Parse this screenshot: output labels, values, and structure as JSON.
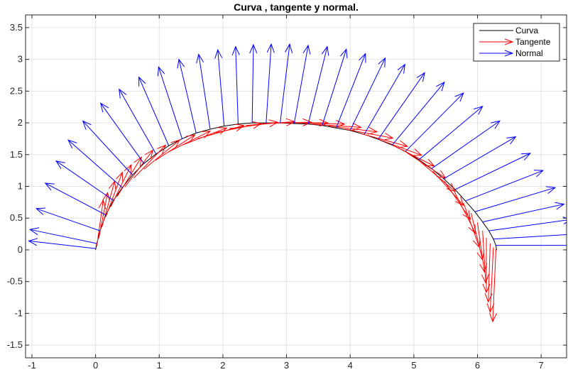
{
  "chart_data": {
    "type": "line",
    "title": "Curva , tangente y normal.",
    "xlabel": "",
    "ylabel": "",
    "xlim": [
      -1.1,
      7.4
    ],
    "ylim": [
      -1.7,
      3.7
    ],
    "xticks": [
      -1,
      0,
      1,
      2,
      3,
      4,
      5,
      6,
      7
    ],
    "yticks": [
      -1.5,
      -1,
      -0.5,
      0,
      0.5,
      1,
      1.5,
      2,
      2.5,
      3,
      3.5
    ],
    "grid": true,
    "legend_position": "top-right",
    "legend": [
      "Curva",
      "Tangente",
      "Normal"
    ],
    "colors": {
      "curva": "#000000",
      "tangente": "#ff0000",
      "normal": "#0000ff"
    },
    "curve": {
      "name": "Curva",
      "x": [
        0,
        0.02,
        0.07,
        0.16,
        0.28,
        0.42,
        0.58,
        0.76,
        0.95,
        1.15,
        1.36,
        1.58,
        1.8,
        2.02,
        2.24,
        2.46,
        2.68,
        2.9,
        3.12,
        3.34,
        3.56,
        3.78,
        4.0,
        4.22,
        4.44,
        4.66,
        4.87,
        5.08,
        5.28,
        5.47,
        5.65,
        5.81,
        5.96,
        6.08,
        6.18,
        6.25,
        6.29,
        6.3
      ],
      "y": [
        0,
        0.1,
        0.3,
        0.55,
        0.78,
        0.98,
        1.18,
        1.36,
        1.51,
        1.64,
        1.75,
        1.84,
        1.9,
        1.95,
        1.98,
        2.0,
        2.0,
        2.0,
        1.99,
        1.98,
        1.96,
        1.92,
        1.88,
        1.82,
        1.74,
        1.65,
        1.55,
        1.42,
        1.28,
        1.12,
        0.95,
        0.77,
        0.6,
        0.44,
        0.3,
        0.17,
        0.07,
        0
      ]
    },
    "tangente": {
      "name": "Tangente",
      "arrows": [
        {
          "x": 0.02,
          "y": 0.06,
          "u": 0.1,
          "v": 0.72
        },
        {
          "x": 0.05,
          "y": 0.18,
          "u": 0.14,
          "v": 0.72
        },
        {
          "x": 0.1,
          "y": 0.36,
          "u": 0.2,
          "v": 0.72
        },
        {
          "x": 0.16,
          "y": 0.52,
          "u": 0.26,
          "v": 0.7
        },
        {
          "x": 0.24,
          "y": 0.68,
          "u": 0.32,
          "v": 0.66
        },
        {
          "x": 0.34,
          "y": 0.84,
          "u": 0.38,
          "v": 0.62
        },
        {
          "x": 0.46,
          "y": 0.99,
          "u": 0.44,
          "v": 0.58
        },
        {
          "x": 0.6,
          "y": 1.13,
          "u": 0.5,
          "v": 0.52
        },
        {
          "x": 0.76,
          "y": 1.27,
          "u": 0.56,
          "v": 0.46
        },
        {
          "x": 0.94,
          "y": 1.41,
          "u": 0.62,
          "v": 0.4
        },
        {
          "x": 1.14,
          "y": 1.54,
          "u": 0.66,
          "v": 0.33
        },
        {
          "x": 1.36,
          "y": 1.65,
          "u": 0.7,
          "v": 0.27
        },
        {
          "x": 1.6,
          "y": 1.75,
          "u": 0.73,
          "v": 0.21
        },
        {
          "x": 1.85,
          "y": 1.84,
          "u": 0.75,
          "v": 0.15
        },
        {
          "x": 2.1,
          "y": 1.91,
          "u": 0.76,
          "v": 0.1
        },
        {
          "x": 2.36,
          "y": 1.96,
          "u": 0.77,
          "v": 0.06
        },
        {
          "x": 2.62,
          "y": 1.99,
          "u": 0.77,
          "v": 0.02
        },
        {
          "x": 2.88,
          "y": 2.0,
          "u": 0.77,
          "v": 0.0
        },
        {
          "x": 3.14,
          "y": 2.0,
          "u": 0.77,
          "v": -0.02
        },
        {
          "x": 3.4,
          "y": 1.98,
          "u": 0.77,
          "v": -0.05
        },
        {
          "x": 3.66,
          "y": 1.95,
          "u": 0.76,
          "v": -0.09
        },
        {
          "x": 3.92,
          "y": 1.9,
          "u": 0.75,
          "v": -0.14
        },
        {
          "x": 4.17,
          "y": 1.83,
          "u": 0.73,
          "v": -0.2
        },
        {
          "x": 4.42,
          "y": 1.75,
          "u": 0.7,
          "v": -0.26
        },
        {
          "x": 4.66,
          "y": 1.65,
          "u": 0.66,
          "v": -0.33
        },
        {
          "x": 4.89,
          "y": 1.53,
          "u": 0.61,
          "v": -0.4
        },
        {
          "x": 5.1,
          "y": 1.39,
          "u": 0.55,
          "v": -0.47
        },
        {
          "x": 5.3,
          "y": 1.24,
          "u": 0.48,
          "v": -0.54
        },
        {
          "x": 5.48,
          "y": 1.08,
          "u": 0.41,
          "v": -0.6
        },
        {
          "x": 5.64,
          "y": 0.91,
          "u": 0.33,
          "v": -0.65
        },
        {
          "x": 5.78,
          "y": 0.74,
          "u": 0.25,
          "v": -0.7
        },
        {
          "x": 5.9,
          "y": 0.58,
          "u": 0.18,
          "v": -0.74
        },
        {
          "x": 6.0,
          "y": 0.43,
          "u": 0.11,
          "v": -0.78
        },
        {
          "x": 6.08,
          "y": 0.3,
          "u": 0.05,
          "v": -0.82
        },
        {
          "x": 6.14,
          "y": 0.19,
          "u": 0.0,
          "v": -0.86
        },
        {
          "x": 6.2,
          "y": 0.1,
          "u": -0.03,
          "v": -0.92
        },
        {
          "x": 6.25,
          "y": 0.04,
          "u": -0.05,
          "v": -1.02
        },
        {
          "x": 6.29,
          "y": 0.01,
          "u": -0.05,
          "v": -1.14
        }
      ]
    },
    "normal": {
      "name": "Normal",
      "arrows": [
        {
          "x": 0.0,
          "y": 0.02,
          "u": -1.05,
          "v": 0.12
        },
        {
          "x": 0.02,
          "y": 0.1,
          "u": -1.05,
          "v": 0.22
        },
        {
          "x": 0.07,
          "y": 0.3,
          "u": -1.0,
          "v": 0.35
        },
        {
          "x": 0.16,
          "y": 0.55,
          "u": -0.95,
          "v": 0.5
        },
        {
          "x": 0.28,
          "y": 0.78,
          "u": -0.9,
          "v": 0.62
        },
        {
          "x": 0.42,
          "y": 0.98,
          "u": -0.85,
          "v": 0.75
        },
        {
          "x": 0.58,
          "y": 1.18,
          "u": -0.78,
          "v": 0.85
        },
        {
          "x": 0.76,
          "y": 1.36,
          "u": -0.68,
          "v": 0.95
        },
        {
          "x": 0.95,
          "y": 1.51,
          "u": -0.58,
          "v": 1.02
        },
        {
          "x": 1.15,
          "y": 1.64,
          "u": -0.47,
          "v": 1.08
        },
        {
          "x": 1.36,
          "y": 1.75,
          "u": -0.37,
          "v": 1.13
        },
        {
          "x": 1.58,
          "y": 1.84,
          "u": -0.27,
          "v": 1.16
        },
        {
          "x": 1.8,
          "y": 1.9,
          "u": -0.18,
          "v": 1.18
        },
        {
          "x": 2.02,
          "y": 1.95,
          "u": -0.1,
          "v": 1.2
        },
        {
          "x": 2.24,
          "y": 1.98,
          "u": -0.04,
          "v": 1.22
        },
        {
          "x": 2.46,
          "y": 2.0,
          "u": 0.02,
          "v": 1.23
        },
        {
          "x": 2.68,
          "y": 2.0,
          "u": 0.08,
          "v": 1.24
        },
        {
          "x": 2.9,
          "y": 2.0,
          "u": 0.15,
          "v": 1.24
        },
        {
          "x": 3.12,
          "y": 1.99,
          "u": 0.22,
          "v": 1.23
        },
        {
          "x": 3.34,
          "y": 1.98,
          "u": 0.3,
          "v": 1.22
        },
        {
          "x": 3.56,
          "y": 1.96,
          "u": 0.38,
          "v": 1.2
        },
        {
          "x": 3.78,
          "y": 1.92,
          "u": 0.46,
          "v": 1.17
        },
        {
          "x": 4.0,
          "y": 1.88,
          "u": 0.55,
          "v": 1.14
        },
        {
          "x": 4.22,
          "y": 1.82,
          "u": 0.64,
          "v": 1.1
        },
        {
          "x": 4.44,
          "y": 1.74,
          "u": 0.73,
          "v": 1.05
        },
        {
          "x": 4.66,
          "y": 1.65,
          "u": 0.82,
          "v": 0.99
        },
        {
          "x": 4.87,
          "y": 1.55,
          "u": 0.91,
          "v": 0.92
        },
        {
          "x": 5.08,
          "y": 1.42,
          "u": 1.0,
          "v": 0.84
        },
        {
          "x": 5.28,
          "y": 1.28,
          "u": 1.07,
          "v": 0.75
        },
        {
          "x": 5.47,
          "y": 1.12,
          "u": 1.13,
          "v": 0.66
        },
        {
          "x": 5.65,
          "y": 0.95,
          "u": 1.18,
          "v": 0.57
        },
        {
          "x": 5.81,
          "y": 0.77,
          "u": 1.22,
          "v": 0.48
        },
        {
          "x": 5.96,
          "y": 0.6,
          "u": 1.26,
          "v": 0.38
        },
        {
          "x": 6.08,
          "y": 0.44,
          "u": 1.28,
          "v": 0.28
        },
        {
          "x": 6.18,
          "y": 0.3,
          "u": 1.3,
          "v": 0.18
        },
        {
          "x": 6.25,
          "y": 0.17,
          "u": 1.32,
          "v": 0.08
        },
        {
          "x": 6.29,
          "y": 0.07,
          "u": 1.33,
          "v": 0.0
        }
      ]
    }
  }
}
